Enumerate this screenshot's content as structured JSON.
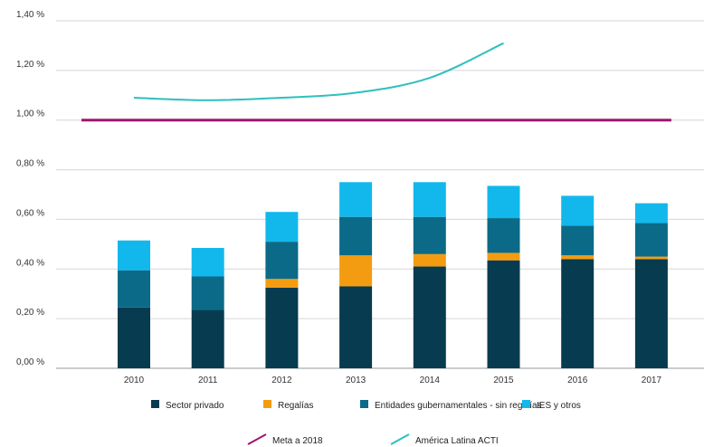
{
  "chart_data": {
    "type": "bar",
    "stacked": true,
    "categories": [
      "2010",
      "2011",
      "2012",
      "2013",
      "2014",
      "2015",
      "2016",
      "2017"
    ],
    "ylim": [
      0,
      1.4
    ],
    "yticks": [
      "0,00 %",
      "0,20 %",
      "0,40 %",
      "0,60 %",
      "0,80 %",
      "1,00 %",
      "1,20 %",
      "1,40 %"
    ],
    "ytick_values": [
      0,
      0.2,
      0.4,
      0.6,
      0.8,
      1.0,
      1.2,
      1.4
    ],
    "series": [
      {
        "name": "Sector privado",
        "color": "#073b4f",
        "values": [
          0.245,
          0.235,
          0.325,
          0.33,
          0.41,
          0.435,
          0.44,
          0.44
        ]
      },
      {
        "name": "Regalías",
        "color": "#f39c12",
        "values": [
          0.0,
          0.0,
          0.035,
          0.125,
          0.05,
          0.03,
          0.015,
          0.01
        ]
      },
      {
        "name": "Entidades gubernamentales - sin regalías",
        "color": "#0b6a87",
        "values": [
          0.15,
          0.135,
          0.15,
          0.155,
          0.15,
          0.14,
          0.12,
          0.135
        ]
      },
      {
        "name": "IES y otros",
        "color": "#12b8ec",
        "values": [
          0.12,
          0.115,
          0.12,
          0.14,
          0.14,
          0.13,
          0.12,
          0.08
        ]
      }
    ],
    "lines": [
      {
        "name": "Meta a 2018",
        "color": "#a0166e",
        "style": "straight",
        "x_span": "full",
        "values": [
          1.0
        ]
      },
      {
        "name": "América Latina ACTI",
        "color": "#2ebfbf",
        "style": "smooth",
        "values": [
          1.09,
          1.08,
          1.09,
          1.11,
          1.17,
          1.31
        ]
      }
    ],
    "grid": "horizontal",
    "legend_position": "bottom",
    "title": "",
    "xlabel": "",
    "ylabel": ""
  }
}
